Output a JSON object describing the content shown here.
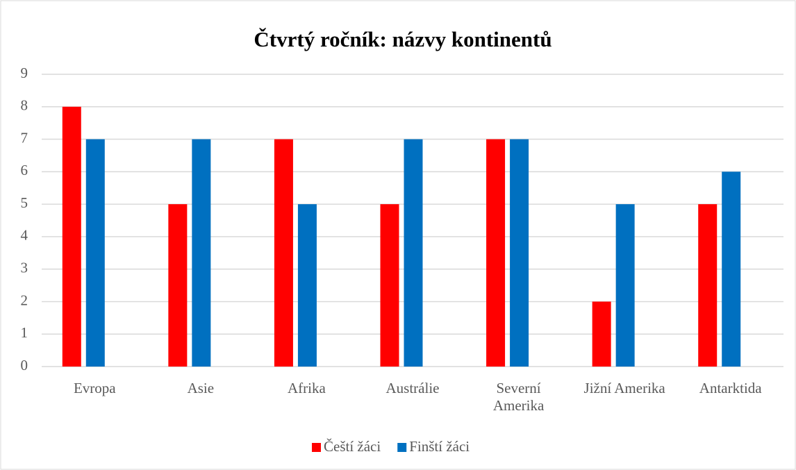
{
  "chart_data": {
    "type": "bar",
    "title": "Čtvrtý ročník: názvy kontinentů",
    "categories": [
      "Evropa",
      "Asie",
      "Afrika",
      "Austrálie",
      "Severní Amerika",
      "Jižní Amerika",
      "Antarktida"
    ],
    "series": [
      {
        "name": "Čeští žáci",
        "color": "#ff0000",
        "values": [
          8,
          5,
          7,
          5,
          7,
          2,
          5
        ]
      },
      {
        "name": "Finští žáci",
        "color": "#0070c0",
        "values": [
          7,
          7,
          5,
          7,
          7,
          5,
          6
        ]
      }
    ],
    "ylim": [
      0,
      9
    ],
    "yticks": [
      0,
      1,
      2,
      3,
      4,
      5,
      6,
      7,
      8,
      9
    ],
    "grid": true,
    "legend": "bottom"
  }
}
